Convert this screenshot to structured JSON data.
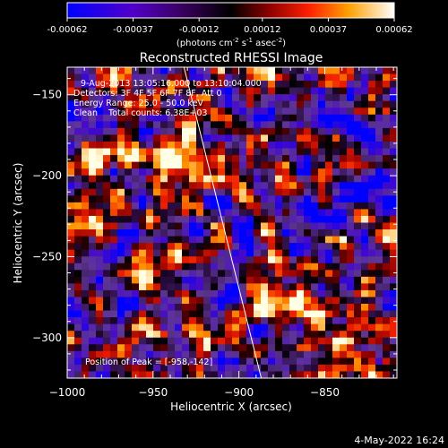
{
  "chart_data": {
    "type": "heatmap",
    "title": "Reconstructed RHESSI Image",
    "xlabel": "Heliocentric X (arcsec)",
    "ylabel": "Heliocentric Y (arcsec)",
    "xlim": [
      -1000,
      -808
    ],
    "ylim": [
      -325,
      -133
    ],
    "xticks": [
      -1000,
      -950,
      -900,
      -850
    ],
    "yticks": [
      -150,
      -200,
      -250,
      -300
    ],
    "colorbar": {
      "ticks": [
        "-0.00062",
        "-0.00037",
        "-0.00012",
        "0.00012",
        "0.00037",
        "0.00062"
      ],
      "units_prefix": "(photons cm",
      "units_exp1": "-2",
      "units_mid1": " s",
      "units_exp2": "-1",
      "units_mid2": " asec",
      "units_exp3": "-2",
      "units_suffix": ")",
      "range": [
        -0.00062,
        0.00062
      ]
    },
    "annotations": [
      "9-Aug-2013 13:05:16.000 to 13:10:04.000",
      "Detectors: 3F 4F 5F 6F 7F 8F, Att 0",
      "Energy Range: 25.0 - 50.0 keV",
      "Clean    Total counts: 6.38E+03"
    ],
    "peak_label": "Position of Peak = [-958,-142]",
    "peak": [
      -958,
      -142
    ],
    "limb_line": [
      [
        -932,
        -133
      ],
      [
        -887,
        -325
      ]
    ],
    "timestamp": "4-May-2022 16:24"
  },
  "colors": {
    "background": "#000000",
    "text": "#ffffff",
    "colormap": [
      "#0000ff",
      "#5000b4",
      "#6a3aa0",
      "#3a1050",
      "#000000",
      "#700000",
      "#d80000",
      "#ff6000",
      "#ffb000",
      "#ffffff"
    ]
  }
}
